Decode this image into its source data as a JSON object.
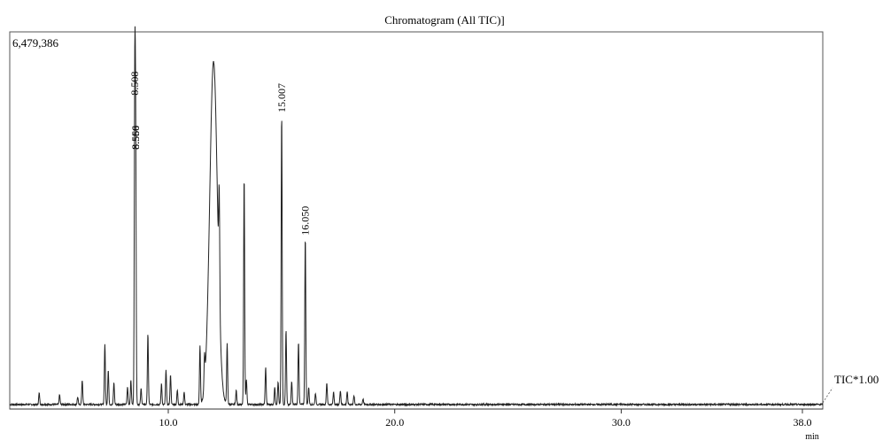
{
  "chart_data": {
    "type": "line",
    "title": "Chromatogram (All TIC)]",
    "y_max_label": "6,479,386",
    "y_max": 6479386,
    "xlim": [
      3.0,
      38.9
    ],
    "ylim": [
      0,
      6479386
    ],
    "x_ticks": [
      {
        "value": 10.0,
        "label": "10.0"
      },
      {
        "value": 20.0,
        "label": "20.0"
      },
      {
        "value": 30.0,
        "label": "30.0"
      },
      {
        "value": 38.0,
        "label": "38.0"
      }
    ],
    "x_unit": "min",
    "trace_label": "TIC*1.00",
    "grid": false,
    "line_color": "#222222",
    "peaks": [
      {
        "rt": 4.3,
        "intensity": 200000
      },
      {
        "rt": 5.2,
        "intensity": 170000
      },
      {
        "rt": 6.0,
        "intensity": 130000
      },
      {
        "rt": 6.2,
        "intensity": 430000
      },
      {
        "rt": 7.2,
        "intensity": 1060000
      },
      {
        "rt": 7.35,
        "intensity": 600000
      },
      {
        "rt": 7.6,
        "intensity": 380000
      },
      {
        "rt": 8.2,
        "intensity": 300000
      },
      {
        "rt": 8.35,
        "intensity": 420000
      },
      {
        "rt": 8.52,
        "intensity": 5400000
      },
      {
        "rt": 8.56,
        "intensity": 4450000
      },
      {
        "rt": 8.8,
        "intensity": 280000
      },
      {
        "rt": 9.1,
        "intensity": 1230000
      },
      {
        "rt": 9.7,
        "intensity": 360000
      },
      {
        "rt": 9.9,
        "intensity": 600000
      },
      {
        "rt": 10.1,
        "intensity": 520000
      },
      {
        "rt": 10.4,
        "intensity": 250000
      },
      {
        "rt": 10.7,
        "intensity": 220000
      },
      {
        "rt": 11.4,
        "intensity": 1020000
      },
      {
        "rt": 11.6,
        "intensity": 520000
      },
      {
        "rt": 12.0,
        "intensity": 6000000,
        "width": 0.17
      },
      {
        "rt": 12.25,
        "intensity": 1800000
      },
      {
        "rt": 12.6,
        "intensity": 1050000
      },
      {
        "rt": 13.0,
        "intensity": 250000
      },
      {
        "rt": 13.35,
        "intensity": 4000000
      },
      {
        "rt": 13.45,
        "intensity": 450000
      },
      {
        "rt": 14.3,
        "intensity": 650000
      },
      {
        "rt": 14.7,
        "intensity": 300000
      },
      {
        "rt": 14.85,
        "intensity": 400000
      },
      {
        "rt": 15.007,
        "intensity": 5100000
      },
      {
        "rt": 15.2,
        "intensity": 1300000
      },
      {
        "rt": 15.45,
        "intensity": 400000
      },
      {
        "rt": 15.75,
        "intensity": 1100000
      },
      {
        "rt": 16.05,
        "intensity": 2950000
      },
      {
        "rt": 16.2,
        "intensity": 300000
      },
      {
        "rt": 16.5,
        "intensity": 200000
      },
      {
        "rt": 17.0,
        "intensity": 380000
      },
      {
        "rt": 17.3,
        "intensity": 220000
      },
      {
        "rt": 17.6,
        "intensity": 250000
      },
      {
        "rt": 17.9,
        "intensity": 220000
      },
      {
        "rt": 18.2,
        "intensity": 150000
      },
      {
        "rt": 18.6,
        "intensity": 100000
      }
    ],
    "peak_labels": [
      {
        "rt": 8.508,
        "label": "8.508",
        "intensity": 5400000
      },
      {
        "rt": 8.556,
        "label": "8.556",
        "intensity": 4450000
      },
      {
        "rt": 8.56,
        "label": "8.560",
        "intensity": 4450000
      },
      {
        "rt": 15.007,
        "label": "15.007",
        "intensity": 5100000
      },
      {
        "rt": 16.05,
        "label": "16.050",
        "intensity": 2950000
      }
    ]
  }
}
